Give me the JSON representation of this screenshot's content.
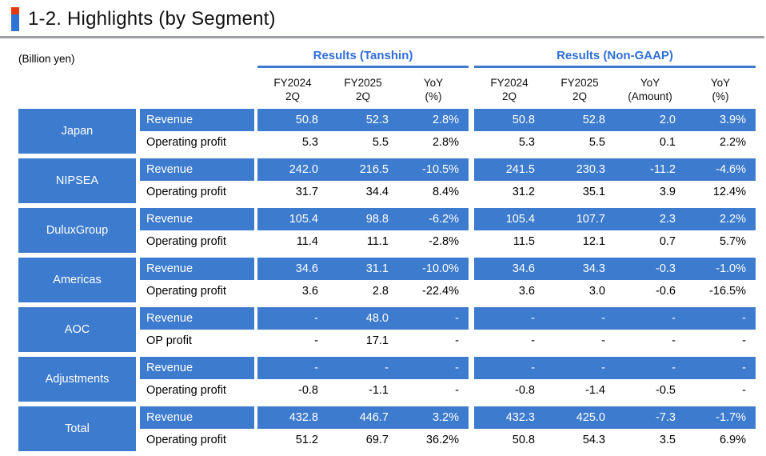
{
  "title": "1-2. Highlights (by Segment)",
  "unit_label": "(Billion yen)",
  "colors": {
    "cell_blue": "#3d7bce",
    "group_header_blue": "#2f6fd8",
    "title_bar_red": "#e8380d",
    "title_bar_blue": "#2e74d4",
    "divider_gray": "#9b9fa3"
  },
  "groups": {
    "tanshin": {
      "label": "Results (Tanshin)",
      "columns": [
        [
          "FY2024",
          "2Q"
        ],
        [
          "FY2025",
          "2Q"
        ],
        [
          "YoY",
          "(%)"
        ]
      ]
    },
    "nongaap": {
      "label": "Results (Non-GAAP)",
      "columns": [
        [
          "FY2024",
          "2Q"
        ],
        [
          "FY2025",
          "2Q"
        ],
        [
          "YoY",
          "(Amount)"
        ],
        [
          "YoY",
          "(%)"
        ]
      ]
    }
  },
  "segments": [
    {
      "name": "Japan",
      "rows": [
        {
          "label": "Revenue",
          "highlight": true,
          "tanshin": [
            "50.8",
            "52.3",
            "2.8%"
          ],
          "nongaap": [
            "50.8",
            "52.8",
            "2.0",
            "3.9%"
          ]
        },
        {
          "label": "Operating profit",
          "highlight": false,
          "tanshin": [
            "5.3",
            "5.5",
            "2.8%"
          ],
          "nongaap": [
            "5.3",
            "5.5",
            "0.1",
            "2.2%"
          ]
        }
      ]
    },
    {
      "name": "NIPSEA",
      "rows": [
        {
          "label": "Revenue",
          "highlight": true,
          "tanshin": [
            "242.0",
            "216.5",
            "-10.5%"
          ],
          "nongaap": [
            "241.5",
            "230.3",
            "-11.2",
            "-4.6%"
          ]
        },
        {
          "label": "Operating profit",
          "highlight": false,
          "tanshin": [
            "31.7",
            "34.4",
            "8.4%"
          ],
          "nongaap": [
            "31.2",
            "35.1",
            "3.9",
            "12.4%"
          ]
        }
      ]
    },
    {
      "name": "DuluxGroup",
      "rows": [
        {
          "label": "Revenue",
          "highlight": true,
          "tanshin": [
            "105.4",
            "98.8",
            "-6.2%"
          ],
          "nongaap": [
            "105.4",
            "107.7",
            "2.3",
            "2.2%"
          ]
        },
        {
          "label": "Operating profit",
          "highlight": false,
          "tanshin": [
            "11.4",
            "11.1",
            "-2.8%"
          ],
          "nongaap": [
            "11.5",
            "12.1",
            "0.7",
            "5.7%"
          ]
        }
      ]
    },
    {
      "name": "Americas",
      "rows": [
        {
          "label": "Revenue",
          "highlight": true,
          "tanshin": [
            "34.6",
            "31.1",
            "-10.0%"
          ],
          "nongaap": [
            "34.6",
            "34.3",
            "-0.3",
            "-1.0%"
          ]
        },
        {
          "label": "Operating profit",
          "highlight": false,
          "tanshin": [
            "3.6",
            "2.8",
            "-22.4%"
          ],
          "nongaap": [
            "3.6",
            "3.0",
            "-0.6",
            "-16.5%"
          ]
        }
      ]
    },
    {
      "name": "AOC",
      "rows": [
        {
          "label": "Revenue",
          "highlight": true,
          "tanshin": [
            "-",
            "48.0",
            "-"
          ],
          "nongaap": [
            "-",
            "-",
            "-",
            "-"
          ]
        },
        {
          "label": "OP profit",
          "highlight": false,
          "tanshin": [
            "-",
            "17.1",
            "-"
          ],
          "nongaap": [
            "-",
            "-",
            "-",
            "-"
          ]
        }
      ]
    },
    {
      "name": "Adjustments",
      "rows": [
        {
          "label": "Revenue",
          "highlight": true,
          "tanshin": [
            "-",
            "-",
            "-"
          ],
          "nongaap": [
            "-",
            "-",
            "-",
            "-"
          ]
        },
        {
          "label": "Operating profit",
          "highlight": false,
          "tanshin": [
            "-0.8",
            "-1.1",
            "-"
          ],
          "nongaap": [
            "-0.8",
            "-1.4",
            "-0.5",
            "-"
          ]
        }
      ]
    },
    {
      "name": "Total",
      "rows": [
        {
          "label": "Revenue",
          "highlight": true,
          "tanshin": [
            "432.8",
            "446.7",
            "3.2%"
          ],
          "nongaap": [
            "432.3",
            "425.0",
            "-7.3",
            "-1.7%"
          ]
        },
        {
          "label": "Operating profit",
          "highlight": false,
          "tanshin": [
            "51.2",
            "69.7",
            "36.2%"
          ],
          "nongaap": [
            "50.8",
            "54.3",
            "3.5",
            "6.9%"
          ]
        }
      ]
    }
  ]
}
